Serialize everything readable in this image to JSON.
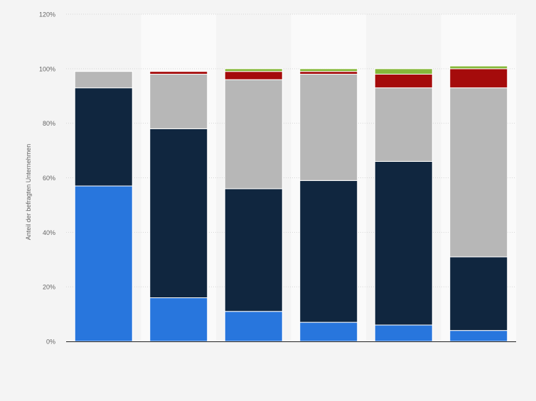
{
  "chart_data": {
    "type": "bar",
    "stacked": true,
    "ylabel": "Anteil der befragten Unternehmen",
    "ylim": [
      0,
      120
    ],
    "yticks": [
      0,
      20,
      40,
      60,
      80,
      100,
      120
    ],
    "ytick_labels": [
      "0%",
      "20%",
      "40%",
      "60%",
      "80%",
      "100%",
      "120%"
    ],
    "grid": true,
    "legend": "none",
    "categories": [
      "",
      "",
      "",
      "",
      "",
      ""
    ],
    "series": [
      {
        "color": "#2876dd",
        "values": [
          57,
          16,
          11,
          7,
          6,
          4
        ]
      },
      {
        "color": "#10263f",
        "values": [
          36,
          62,
          45,
          52,
          60,
          27
        ]
      },
      {
        "color": "#b7b7b7",
        "values": [
          6,
          20,
          40,
          39,
          27,
          62
        ]
      },
      {
        "color": "#a50b0b",
        "values": [
          0,
          1,
          3,
          1,
          5,
          7
        ]
      },
      {
        "color": "#86b83a",
        "values": [
          0,
          0,
          1,
          1,
          2,
          1
        ]
      }
    ]
  }
}
